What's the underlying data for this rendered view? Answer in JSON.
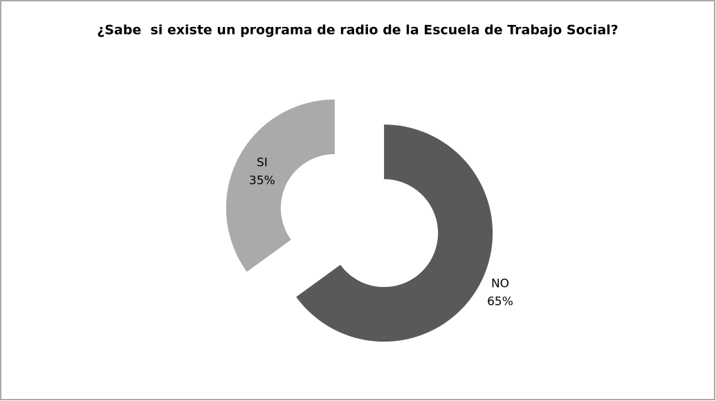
{
  "chart_data": {
    "type": "donut",
    "title": "¿Sabe  si existe un programa de radio de la Escuela de Trabajo Social?",
    "categories": [
      "NO",
      "SI"
    ],
    "values": [
      65,
      35
    ],
    "value_labels": [
      "65%",
      "35%"
    ],
    "colors": [
      "#595959",
      "#aaaaaa"
    ]
  }
}
